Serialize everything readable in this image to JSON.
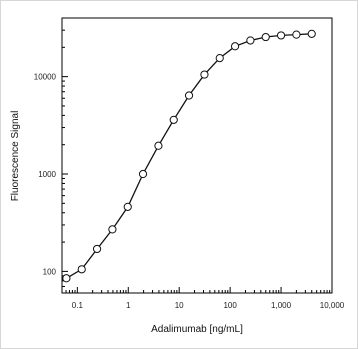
{
  "chart_data": {
    "type": "line",
    "title": "",
    "xlabel": "Adalimumab [ng/mL]",
    "ylabel": "Fluorescence Signal",
    "x_scale": "log",
    "y_scale": "log",
    "xlim": [
      0.05,
      10000
    ],
    "ylim": [
      60,
      40000
    ],
    "x_ticks": [
      {
        "value": 0.1,
        "label": "0.1"
      },
      {
        "value": 1,
        "label": "1"
      },
      {
        "value": 10,
        "label": "10"
      },
      {
        "value": 100,
        "label": "100"
      },
      {
        "value": 1000,
        "label": "1,000"
      },
      {
        "value": 10000,
        "label": "10,000"
      }
    ],
    "y_ticks": [
      {
        "value": 100,
        "label": "100"
      },
      {
        "value": 1000,
        "label": "1000"
      },
      {
        "value": 10000,
        "label": "10000"
      }
    ],
    "grid": false,
    "legend": "none",
    "colors": {
      "line": "#111111",
      "marker_fill": "#ffffff",
      "marker_stroke": "#111111",
      "axis": "#000000"
    },
    "series": [
      {
        "x": [
          0.061,
          0.122,
          0.244,
          0.488,
          0.977,
          1.95,
          3.91,
          7.81,
          15.6,
          31.3,
          62.5,
          125,
          250,
          500,
          1000,
          2000,
          4000
        ],
        "y": [
          85,
          105,
          170,
          270,
          460,
          1000,
          1950,
          3600,
          6400,
          10500,
          15500,
          20500,
          23500,
          25500,
          26500,
          27000,
          27500
        ]
      }
    ]
  }
}
